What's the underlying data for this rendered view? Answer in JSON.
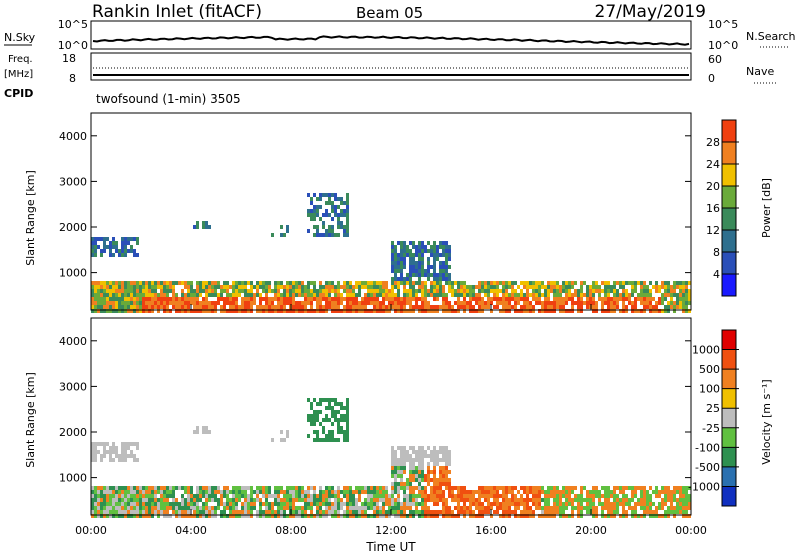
{
  "header": {
    "station": "Rankin Inlet (fitACF)",
    "beam": "Beam 05",
    "date": "27/May/2019"
  },
  "noise_panel": {
    "left_label": "N.Sky",
    "left_ticks": [
      "10^5",
      "10^0"
    ],
    "right_ticks": [
      "10^5",
      "10^0"
    ],
    "right_label": "N.Search"
  },
  "freq_panel": {
    "left_label_1": "Freq.",
    "left_label_2": "[MHz]",
    "left_ticks": [
      "18",
      "8"
    ],
    "right_ticks": [
      "60",
      "0"
    ],
    "right_label": "Nave",
    "cpid_label": "CPID",
    "cpid_text": "twofsound (1-min) 3505"
  },
  "colors": {
    "power_scale": [
      "#1a1aff",
      "#2a4fb8",
      "#2e6f8e",
      "#3a8a5a",
      "#6aaa3a",
      "#f0c000",
      "#f08020",
      "#f04010",
      "#e80000"
    ],
    "velocity_scale": [
      "#1030c0",
      "#2a70b0",
      "#2e9050",
      "#60c040",
      "#bdbdbd",
      "#f0c000",
      "#f08020",
      "#f05010",
      "#e00000"
    ]
  },
  "chart_data": [
    {
      "type": "heatmap",
      "title": "Power",
      "ylabel": "Slant Range [km]",
      "ylim": [
        180,
        4500
      ],
      "y_ticks": [
        "1000",
        "2000",
        "3000",
        "4000"
      ],
      "xlabel": "Time UT",
      "xlim": [
        "00:00",
        "24:00"
      ],
      "x_ticks": [
        "00:00",
        "04:00",
        "08:00",
        "12:00",
        "16:00",
        "20:00",
        "00:00"
      ],
      "colorbar_label": "Power [dB]",
      "colorbar_ticks": [
        "4",
        "8",
        "12",
        "16",
        "20",
        "24",
        "28"
      ],
      "colorbar_range": [
        0,
        30
      ]
    },
    {
      "type": "heatmap",
      "title": "Velocity",
      "ylabel": "Slant Range [km]",
      "ylim": [
        180,
        4500
      ],
      "y_ticks": [
        "1000",
        "2000",
        "3000",
        "4000"
      ],
      "xlabel": "Time UT",
      "xlim": [
        "00:00",
        "24:00"
      ],
      "x_ticks": [
        "00:00",
        "04:00",
        "08:00",
        "12:00",
        "16:00",
        "20:00",
        "00:00"
      ],
      "colorbar_label": "Velocity [m s⁻¹]",
      "colorbar_ticks": [
        "1000",
        "500",
        "100",
        "25",
        "-25",
        "-100",
        "-500",
        "-1000"
      ]
    }
  ]
}
